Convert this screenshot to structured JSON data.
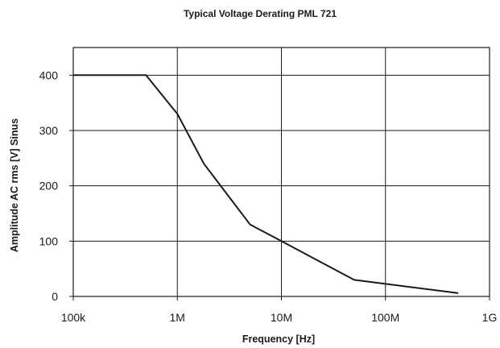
{
  "chart_data": {
    "type": "line",
    "title": "Typical Voltage Derating PML 721",
    "xlabel": "Frequency [Hz]",
    "ylabel": "Amplitude AC rms [V] Sinus",
    "x_scale": "log",
    "xlim": [
      100000,
      1000000000
    ],
    "ylim": [
      0,
      450
    ],
    "x_ticks": [
      {
        "value": 100000,
        "label": "100k"
      },
      {
        "value": 1000000,
        "label": "1M"
      },
      {
        "value": 10000000,
        "label": "10M"
      },
      {
        "value": 100000000,
        "label": "100M"
      },
      {
        "value": 1000000000,
        "label": "1G"
      }
    ],
    "y_ticks": [
      {
        "value": 0,
        "label": "0"
      },
      {
        "value": 100,
        "label": "100"
      },
      {
        "value": 200,
        "label": "200"
      },
      {
        "value": 300,
        "label": "300"
      },
      {
        "value": 400,
        "label": "400"
      }
    ],
    "grid": true,
    "legend": "none",
    "series": [
      {
        "color": "#1a1a1a",
        "x": [
          100000,
          500000,
          1000000,
          1800000,
          5000000,
          10000000,
          50000000,
          500000000
        ],
        "y": [
          400,
          400,
          330,
          240,
          130,
          100,
          30,
          6
        ]
      }
    ]
  }
}
